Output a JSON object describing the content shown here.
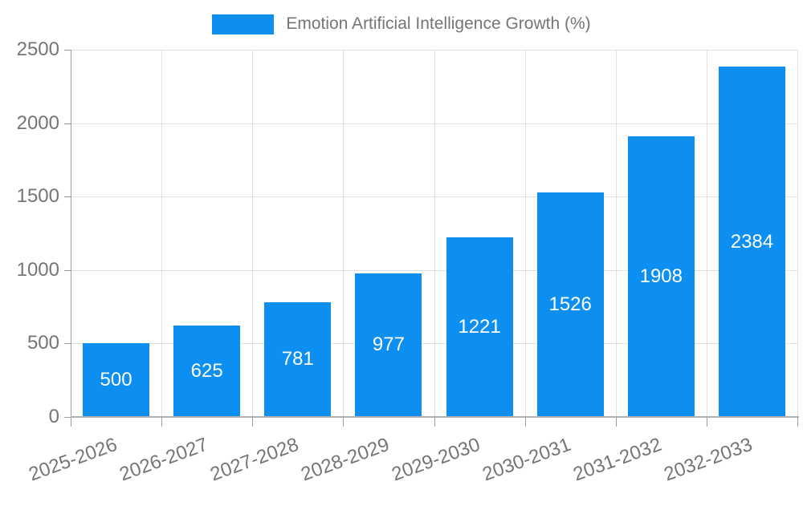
{
  "legend": {
    "label": "Emotion Artificial Intelligence Growth (%)",
    "swatch_color": "#0d8ff2"
  },
  "chart_data": {
    "type": "bar",
    "title": "Emotion Artificial Intelligence Growth (%)",
    "categories": [
      "2025-2026",
      "2026-2027",
      "2027-2028",
      "2028-2029",
      "2029-2030",
      "2030-2031",
      "2031-2032",
      "2032-2033"
    ],
    "values": [
      500,
      625,
      781,
      977,
      1221,
      1526,
      1908,
      2384
    ],
    "xlabel": "",
    "ylabel": "",
    "ylim": [
      0,
      2500
    ],
    "yticks": [
      0,
      500,
      1000,
      1500,
      2000,
      2500
    ],
    "grid": true,
    "legend_position": "top-center",
    "value_label_position": "inside-center",
    "x_label_rotation_deg": -20,
    "colors": {
      "bar": "#0d8ff2",
      "grid": "#e0e0e0",
      "axis": "#9e9e9e",
      "baseline": "#b0b0b0",
      "label_text": "#757575",
      "value_text": "#ffffff",
      "background": "#ffffff"
    }
  }
}
